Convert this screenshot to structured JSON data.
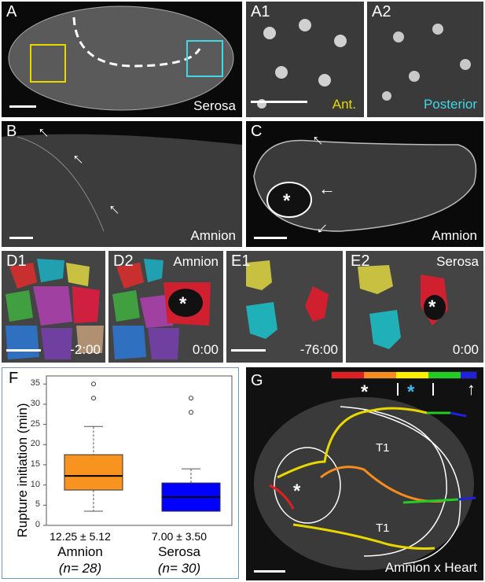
{
  "panels": {
    "A": {
      "label": "A",
      "caption": "Serosa"
    },
    "A1": {
      "label": "A1",
      "caption": "Ant.",
      "caption_color": "#e8d800"
    },
    "A2": {
      "label": "A2",
      "caption": "Posterior",
      "caption_color": "#40d8e8"
    },
    "B": {
      "label": "B",
      "caption": "Amnion"
    },
    "C": {
      "label": "C",
      "caption": "Amnion"
    },
    "D1": {
      "label": "D1",
      "time": "-2:00"
    },
    "D2": {
      "label": "D2",
      "caption": "Amnion",
      "time": "0:00"
    },
    "E1": {
      "label": "E1",
      "time": "-76:00"
    },
    "E2": {
      "label": "E2",
      "caption": "Serosa",
      "time": "0:00"
    },
    "G": {
      "label": "G",
      "caption": "Amnion x Heart",
      "t1_top": "T1",
      "t1_bottom": "T1"
    }
  },
  "panel_f_label": "F",
  "chart_data": {
    "type": "box",
    "ylabel": "Rupture initiation (min)",
    "ylim": [
      0,
      37
    ],
    "yticks": [
      0,
      5,
      10,
      15,
      20,
      25,
      30,
      35
    ],
    "groups": [
      {
        "name": "Amnion",
        "n_label": "(n= 28)",
        "stat_label": "12.25 ± 5.12",
        "color": "#f7931e",
        "min": 3.5,
        "q1": 8.75,
        "median": 12.25,
        "q3": 17.5,
        "max": 24.5,
        "outliers": [
          31.5,
          35
        ]
      },
      {
        "name": "Serosa",
        "n_label": "(n= 30)",
        "stat_label": "7.00 ± 3.50",
        "color": "#0000ff",
        "min": 3.5,
        "q1": 3.5,
        "median": 7.0,
        "q3": 10.5,
        "max": 14.0,
        "outliers": [
          28,
          31.5
        ]
      }
    ]
  },
  "colors": {
    "arrow_star": "#ffffff",
    "g_bar": [
      "#e02020",
      "#f78c1e",
      "#ffee00",
      "#22cc22",
      "#2020e0"
    ],
    "cyan_star": "#40b8f0"
  }
}
